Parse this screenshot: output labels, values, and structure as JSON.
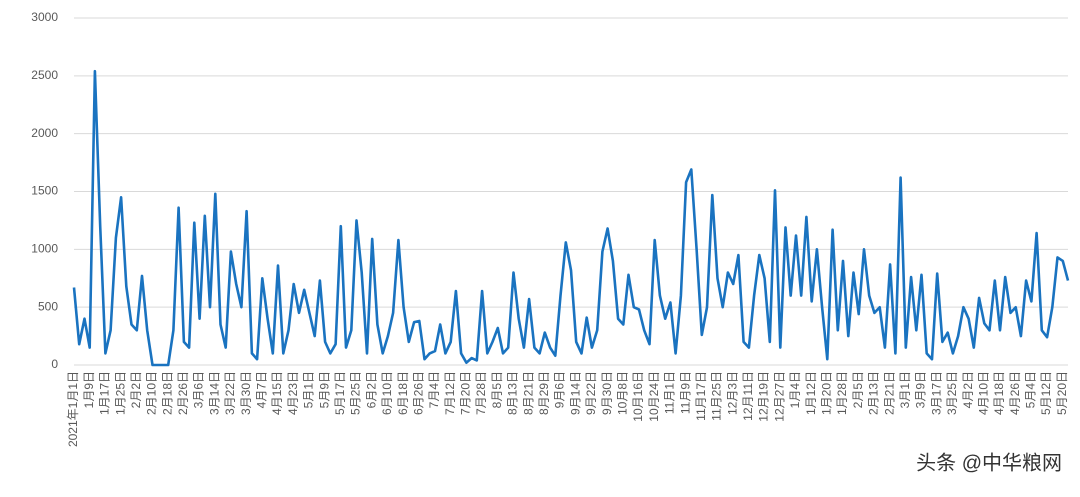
{
  "chart_data": {
    "type": "line",
    "color": "#1a73c0",
    "grid": true,
    "ylim": [
      0,
      3000
    ],
    "yticks": [
      0,
      500,
      1000,
      1500,
      2000,
      2500,
      3000
    ],
    "annotation": "头条 @中华粮网",
    "categories": [
      "2021年1月1日",
      null,
      null,
      "1月9日",
      null,
      null,
      "1月17日",
      null,
      null,
      "1月25日",
      null,
      null,
      "2月2日",
      null,
      null,
      "2月10日",
      null,
      null,
      "2月18日",
      null,
      null,
      "2月26日",
      null,
      null,
      "3月6日",
      null,
      null,
      "3月14日",
      null,
      null,
      "3月22日",
      null,
      null,
      "3月30日",
      null,
      null,
      "4月7日",
      null,
      null,
      "4月15日",
      null,
      null,
      "4月23日",
      null,
      null,
      "5月1日",
      null,
      null,
      "5月9日",
      null,
      null,
      "5月17日",
      null,
      null,
      "5月25日",
      null,
      null,
      "6月2日",
      null,
      null,
      "6月10日",
      null,
      null,
      "6月18日",
      null,
      null,
      "6月26日",
      null,
      null,
      "7月4日",
      null,
      null,
      "7月12日",
      null,
      null,
      "7月20日",
      null,
      null,
      "7月28日",
      null,
      null,
      "8月5日",
      null,
      null,
      "8月13日",
      null,
      null,
      "8月21日",
      null,
      null,
      "8月29日",
      null,
      null,
      "9月6日",
      null,
      null,
      "9月14日",
      null,
      null,
      "9月22日",
      null,
      null,
      "9月30日",
      null,
      null,
      "10月8日",
      null,
      null,
      "10月16日",
      null,
      null,
      "10月24日",
      null,
      null,
      "11月1日",
      null,
      null,
      "11月9日",
      null,
      null,
      "11月17日",
      null,
      null,
      "11月25日",
      null,
      null,
      "12月3日",
      null,
      null,
      "12月11日",
      null,
      null,
      "12月19日",
      null,
      null,
      "12月27日",
      null,
      null,
      "1月4日",
      null,
      null,
      "1月12日",
      null,
      null,
      "1月20日",
      null,
      null,
      "1月28日",
      null,
      null,
      "2月5日",
      null,
      null,
      "2月13日",
      null,
      null,
      "2月21日",
      null,
      null,
      "3月1日",
      null,
      null,
      "3月9日",
      null,
      null,
      "3月17日",
      null,
      null,
      "3月25日",
      null,
      null,
      "4月2日",
      null,
      null,
      "4月10日",
      null,
      null,
      "4月18日",
      null,
      null,
      "4月26日",
      null,
      null,
      "5月4日",
      null,
      null,
      "5月12日",
      null,
      null,
      "5月20日",
      null
    ],
    "values": [
      670,
      180,
      400,
      150,
      2540,
      1200,
      100,
      300,
      1100,
      1450,
      680,
      350,
      300,
      770,
      300,
      0,
      0,
      0,
      0,
      300,
      1360,
      200,
      150,
      1230,
      400,
      1290,
      500,
      1480,
      350,
      150,
      980,
      700,
      500,
      1330,
      100,
      50,
      750,
      400,
      100,
      860,
      100,
      300,
      700,
      450,
      650,
      450,
      250,
      730,
      200,
      100,
      180,
      1200,
      150,
      300,
      1250,
      800,
      100,
      1090,
      350,
      100,
      250,
      450,
      1080,
      500,
      200,
      370,
      380,
      50,
      100,
      120,
      350,
      100,
      200,
      640,
      100,
      20,
      60,
      40,
      640,
      100,
      200,
      320,
      100,
      150,
      800,
      400,
      150,
      570,
      150,
      100,
      280,
      150,
      80,
      600,
      1060,
      820,
      200,
      100,
      410,
      150,
      300,
      980,
      1180,
      900,
      400,
      350,
      780,
      500,
      480,
      300,
      180,
      1080,
      600,
      400,
      540,
      100,
      600,
      1580,
      1690,
      1000,
      260,
      500,
      1470,
      750,
      500,
      800,
      700,
      950,
      200,
      150,
      600,
      950,
      750,
      200,
      1510,
      150,
      1190,
      600,
      1120,
      600,
      1280,
      550,
      1000,
      500,
      50,
      1170,
      300,
      900,
      250,
      800,
      440,
      1000,
      600,
      450,
      500,
      150,
      870,
      100,
      1620,
      150,
      760,
      300,
      780,
      100,
      50,
      790,
      200,
      280,
      100,
      250,
      500,
      400,
      150,
      580,
      360,
      300,
      730,
      300,
      760,
      450,
      500,
      250,
      730,
      550,
      1140,
      300,
      240,
      500,
      930,
      900,
      730
    ]
  }
}
